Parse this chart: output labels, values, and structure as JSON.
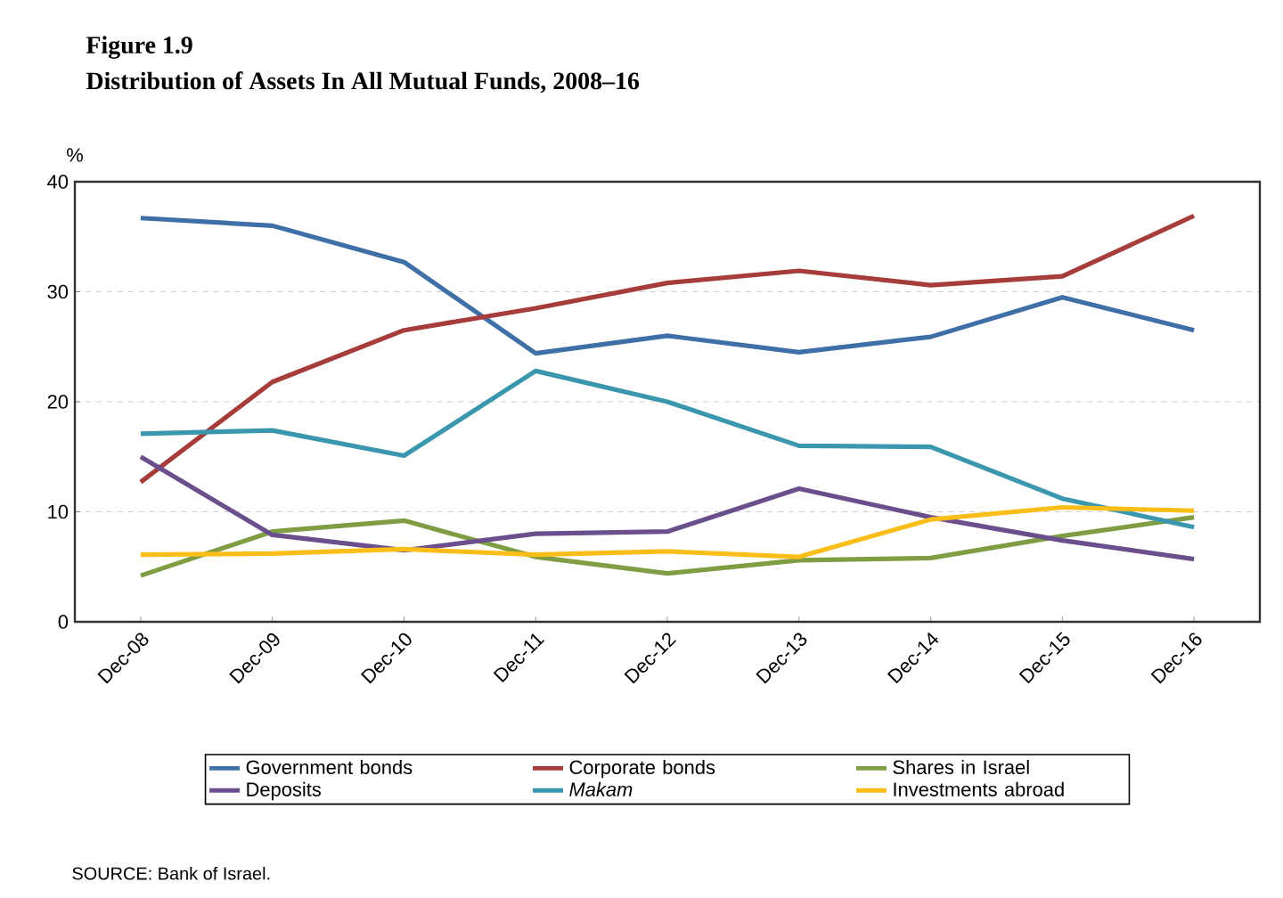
{
  "chart_data": {
    "type": "line",
    "title": "Figure 1.9",
    "subtitle": "Distribution of Assets In All Mutual Funds, 2008–16",
    "ylabel": "%",
    "categories": [
      "Dec-08",
      "Dec-09",
      "Dec-10",
      "Dec-11",
      "Dec-12",
      "Dec-13",
      "Dec-14",
      "Dec-15",
      "Dec-16"
    ],
    "series": [
      {
        "name": "Government bonds",
        "color": "#3e6fa6",
        "values": [
          36.7,
          36.0,
          32.7,
          24.4,
          26.0,
          24.5,
          25.9,
          29.5,
          26.5
        ]
      },
      {
        "name": "Corporate bonds",
        "color": "#a63d3a",
        "values": [
          12.7,
          21.8,
          26.5,
          28.5,
          30.8,
          31.9,
          30.6,
          31.4,
          36.9
        ]
      },
      {
        "name": "Shares in Israel",
        "color": "#7f9e43",
        "values": [
          4.2,
          8.2,
          9.2,
          5.9,
          4.4,
          5.6,
          5.8,
          7.8,
          9.5
        ]
      },
      {
        "name": "Deposits",
        "color": "#6a4f8c",
        "values": [
          15.0,
          7.9,
          6.5,
          8.0,
          8.2,
          12.1,
          9.5,
          7.4,
          5.7
        ]
      },
      {
        "name": "*Makam*",
        "color": "#3a97ad",
        "values": [
          17.1,
          17.4,
          15.1,
          22.8,
          20.0,
          16.0,
          15.9,
          11.2,
          8.6
        ]
      },
      {
        "name": "Investments abroad",
        "color": "#fbbd18",
        "values": [
          6.1,
          6.2,
          6.6,
          6.1,
          6.4,
          5.9,
          9.3,
          10.4,
          10.1
        ]
      }
    ],
    "ylim": [
      0,
      40
    ],
    "yticks": [
      0,
      10,
      20,
      30,
      40
    ],
    "grid": "y",
    "legend": "bottom",
    "marker": "none",
    "line_style": "solid",
    "annotations": [
      "SOURCE: Bank of Israel."
    ]
  }
}
